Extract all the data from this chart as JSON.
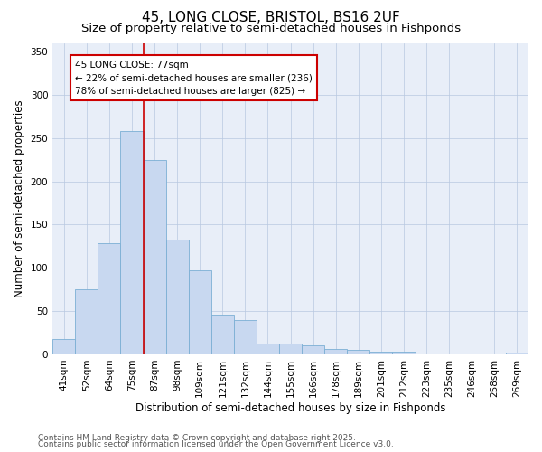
{
  "title_line1": "45, LONG CLOSE, BRISTOL, BS16 2UF",
  "title_line2": "Size of property relative to semi-detached houses in Fishponds",
  "xlabel": "Distribution of semi-detached houses by size in Fishponds",
  "ylabel": "Number of semi-detached properties",
  "categories": [
    "41sqm",
    "52sqm",
    "64sqm",
    "75sqm",
    "87sqm",
    "98sqm",
    "109sqm",
    "121sqm",
    "132sqm",
    "144sqm",
    "155sqm",
    "166sqm",
    "178sqm",
    "189sqm",
    "201sqm",
    "212sqm",
    "223sqm",
    "235sqm",
    "246sqm",
    "258sqm",
    "269sqm"
  ],
  "values": [
    18,
    75,
    128,
    258,
    225,
    133,
    97,
    45,
    40,
    13,
    13,
    10,
    6,
    5,
    3,
    3,
    0,
    0,
    0,
    0,
    2
  ],
  "bar_color": "#c8d8f0",
  "bar_edge_color": "#7bafd4",
  "vline_x": 3.5,
  "vline_color": "#cc0000",
  "annotation_title": "45 LONG CLOSE: 77sqm",
  "annotation_line2": "← 22% of semi-detached houses are smaller (236)",
  "annotation_line3": "78% of semi-detached houses are larger (825) →",
  "annotation_box_facecolor": "#ffffff",
  "annotation_box_edgecolor": "#cc0000",
  "ylim": [
    0,
    360
  ],
  "yticks": [
    0,
    50,
    100,
    150,
    200,
    250,
    300,
    350
  ],
  "background_color": "#e8eef8",
  "footnote1": "Contains HM Land Registry data © Crown copyright and database right 2025.",
  "footnote2": "Contains public sector information licensed under the Open Government Licence v3.0.",
  "title_fontsize": 11,
  "subtitle_fontsize": 9.5,
  "axis_label_fontsize": 8.5,
  "tick_fontsize": 7.5,
  "annotation_fontsize": 7.5,
  "footnote_fontsize": 6.5
}
